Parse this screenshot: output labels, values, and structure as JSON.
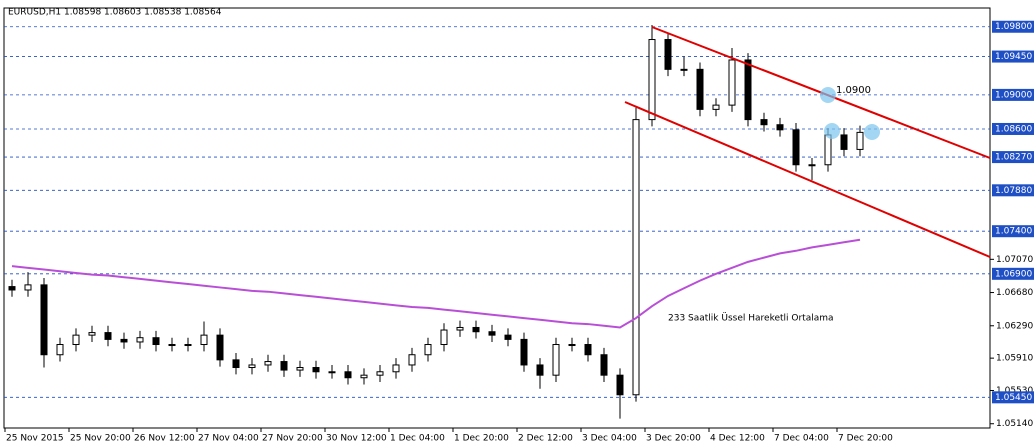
{
  "chart_data": {
    "type": "candlestick",
    "title": "EURUSD,H1  1.08598 1.08603 1.08538 1.08564",
    "categories": [
      "25 Nov 2015",
      null,
      null,
      null,
      "25 Nov 20:00",
      null,
      null,
      null,
      "26 Nov 12:00",
      null,
      null,
      null,
      "27 Nov 04:00",
      null,
      null,
      null,
      "27 Nov 20:00",
      null,
      null,
      null,
      "30 Nov 12:00",
      null,
      null,
      null,
      "1 Dec 04:00",
      null,
      null,
      null,
      "1 Dec 20:00",
      null,
      null,
      null,
      "2 Dec 12:00",
      null,
      null,
      null,
      "3 Dec 04:00",
      null,
      null,
      null,
      "3 Dec 20:00",
      null,
      null,
      null,
      "4 Dec 12:00",
      null,
      null,
      null,
      "7 Dec 04:00",
      null,
      null,
      null,
      "7 Dec 20:00",
      null
    ],
    "open": [
      1.0675,
      1.0671,
      1.0677,
      1.0595,
      1.0607,
      1.0618,
      1.0621,
      1.0613,
      1.061,
      1.0615,
      1.0607,
      1.0607,
      1.0607,
      1.0618,
      1.0589,
      1.058,
      1.0583,
      1.0587,
      1.0577,
      1.058,
      1.0575,
      1.0575,
      1.0568,
      1.0571,
      1.0575,
      1.0583,
      1.0595,
      1.0607,
      1.0624,
      1.0627,
      1.0622,
      1.0618,
      1.0613,
      1.0583,
      1.0571,
      1.0607,
      1.0607,
      1.0595,
      1.0571,
      1.0548,
      1.0871,
      1.0965,
      1.093,
      1.093,
      1.0883,
      1.0888,
      1.0941,
      1.0871,
      1.0865,
      1.0859,
      1.0818,
      1.0818,
      1.0853,
      1.0836
    ],
    "high": [
      1.0683,
      1.0692,
      1.0685,
      1.0615,
      1.0626,
      1.0629,
      1.0629,
      1.0621,
      1.0623,
      1.0623,
      1.0615,
      1.0615,
      1.0634,
      1.0626,
      1.0597,
      1.0591,
      1.0595,
      1.0595,
      1.0588,
      1.0588,
      1.0583,
      1.0583,
      1.0579,
      1.0583,
      1.0591,
      1.0603,
      1.0615,
      1.0632,
      1.0635,
      1.0635,
      1.063,
      1.0626,
      1.0621,
      1.0591,
      1.0615,
      1.0615,
      1.0615,
      1.0603,
      1.0579,
      1.0885,
      1.0982,
      1.0973,
      1.0945,
      1.0938,
      1.0896,
      1.0955,
      1.0949,
      1.0879,
      1.0873,
      1.0867,
      1.0826,
      1.0861,
      1.0861,
      1.0864
    ],
    "low": [
      1.0663,
      1.0663,
      1.058,
      1.0587,
      1.0599,
      1.061,
      1.0605,
      1.0602,
      1.0602,
      1.0599,
      1.0599,
      1.0599,
      1.0599,
      1.0581,
      1.0572,
      1.0572,
      1.0575,
      1.0569,
      1.0569,
      1.0567,
      1.0567,
      1.056,
      1.056,
      1.0563,
      1.0567,
      1.0575,
      1.0587,
      1.0599,
      1.0616,
      1.0614,
      1.061,
      1.0605,
      1.0575,
      1.0555,
      1.0563,
      1.0599,
      1.0587,
      1.0563,
      1.052,
      1.054,
      1.0863,
      1.0922,
      1.0922,
      1.0875,
      1.0875,
      1.088,
      1.0863,
      1.0857,
      1.0851,
      1.081,
      1.08,
      1.081,
      1.0828,
      1.0828
    ],
    "close": [
      1.0671,
      1.0677,
      1.0595,
      1.0607,
      1.0618,
      1.0621,
      1.0613,
      1.061,
      1.0615,
      1.0607,
      1.0607,
      1.0607,
      1.0618,
      1.0589,
      1.058,
      1.0583,
      1.0587,
      1.0577,
      1.058,
      1.0575,
      1.0575,
      1.0568,
      1.0571,
      1.0575,
      1.0583,
      1.0595,
      1.0607,
      1.0624,
      1.0627,
      1.0622,
      1.0618,
      1.0613,
      1.0583,
      1.0571,
      1.0607,
      1.0607,
      1.0595,
      1.0571,
      1.0548,
      1.0871,
      1.0965,
      1.093,
      1.093,
      1.0883,
      1.0888,
      1.0941,
      1.0871,
      1.0865,
      1.0859,
      1.0818,
      1.0818,
      1.0853,
      1.0836,
      1.0856
    ],
    "ema": {
      "color": "#b84fd6",
      "values": [
        1.0699,
        1.0697,
        1.0695,
        1.0693,
        1.0691,
        1.0689,
        1.0688,
        1.0686,
        1.0684,
        1.0682,
        1.068,
        1.0678,
        1.0676,
        1.0674,
        1.0672,
        1.067,
        1.0669,
        1.0667,
        1.0665,
        1.0663,
        1.0661,
        1.0659,
        1.0657,
        1.0655,
        1.0653,
        1.0651,
        1.065,
        1.0648,
        1.0646,
        1.0644,
        1.0642,
        1.064,
        1.0638,
        1.0636,
        1.0634,
        1.0632,
        1.0631,
        1.0629,
        1.0627,
        1.0638,
        1.0652,
        1.0664,
        1.0673,
        1.0682,
        1.069,
        1.0697,
        1.0704,
        1.0709,
        1.0714,
        1.0717,
        1.0721,
        1.0724,
        1.0727,
        1.073
      ]
    },
    "ylim": [
      1.0509,
      1.1002
    ],
    "yticks": [
      {
        "value": 1.0707,
        "label": "1.07070"
      },
      {
        "value": 1.0668,
        "label": "1.06680"
      },
      {
        "value": 1.0629,
        "label": "1.06290"
      },
      {
        "value": 1.0591,
        "label": "1.05910"
      },
      {
        "value": 1.0553,
        "label": "1.05530"
      },
      {
        "value": 1.0514,
        "label": "1.05140"
      }
    ],
    "levels": [
      {
        "value": 1.098,
        "label": "1.09800"
      },
      {
        "value": 1.0945,
        "label": "1.09450"
      },
      {
        "value": 1.09,
        "label": "1.09000"
      },
      {
        "value": 1.086,
        "label": "1.08600"
      },
      {
        "value": 1.0827,
        "label": "1.08270"
      },
      {
        "value": 1.0788,
        "label": "1.07880"
      },
      {
        "value": 1.074,
        "label": "1.07400"
      },
      {
        "value": 1.069,
        "label": "1.06900"
      },
      {
        "value": 1.0545,
        "label": "1.05450"
      }
    ],
    "level_color": "#1f4fc4",
    "annotations": [
      "1.0900",
      "233 Saatlik Üssel Hareketli Ortalama"
    ]
  }
}
